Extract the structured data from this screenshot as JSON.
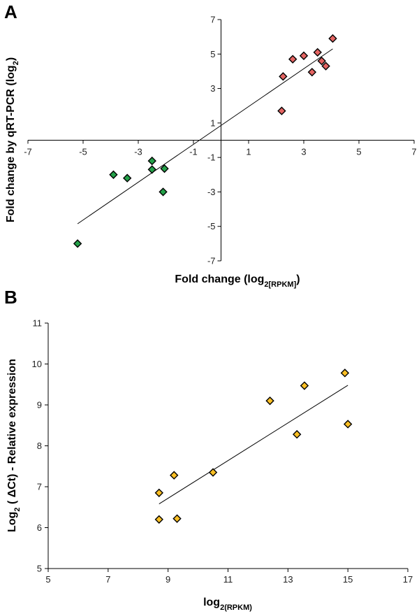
{
  "chart_data": [
    {
      "panel": "A",
      "type": "scatter",
      "xlabel": {
        "main": "Fold change (log",
        "sub": "2[RPKM]",
        "tail": ")"
      },
      "ylabel": {
        "main": "Fold change by qRT-PCR (log",
        "sub": "2",
        "tail": ")"
      },
      "xlim": [
        -7,
        7
      ],
      "ylim": [
        -7,
        7
      ],
      "xticks": [
        "-7",
        "-5",
        "-3",
        "-1",
        "1",
        "3",
        "5",
        "7"
      ],
      "yticks": [
        "7",
        "5",
        "3",
        "1",
        "-1",
        "-3",
        "-5",
        "-7"
      ],
      "grid": false,
      "series": [
        {
          "color": "#e46462",
          "points": [
            [
              2.2,
              1.7
            ],
            [
              2.25,
              3.7
            ],
            [
              2.6,
              4.7
            ],
            [
              3.0,
              4.9
            ],
            [
              3.3,
              3.95
            ],
            [
              3.5,
              5.1
            ],
            [
              3.65,
              4.6
            ],
            [
              3.8,
              4.3
            ],
            [
              4.05,
              5.9
            ]
          ]
        },
        {
          "color": "#24a149",
          "points": [
            [
              -5.2,
              -6.0
            ],
            [
              -3.9,
              -2.0
            ],
            [
              -3.4,
              -2.2
            ],
            [
              -2.5,
              -1.2
            ],
            [
              -2.5,
              -1.7
            ],
            [
              -2.05,
              -1.65
            ],
            [
              -2.1,
              -3.0
            ]
          ]
        }
      ],
      "trendline": [
        [
          -5.2,
          -4.85
        ],
        [
          4.05,
          5.3
        ]
      ]
    },
    {
      "panel": "B",
      "type": "scatter",
      "xlabel": {
        "main": "log",
        "sub": "2(RPKM)",
        "tail": ""
      },
      "ylabel": {
        "main": "Log",
        "sub": "2",
        "tail": " ( ΔCt) - Relative expression"
      },
      "xlim": [
        5,
        17
      ],
      "ylim": [
        5,
        11
      ],
      "xticks": [
        "5",
        "7",
        "9",
        "11",
        "13",
        "15",
        "17"
      ],
      "yticks": [
        "11",
        "10",
        "9",
        "8",
        "7",
        "6",
        "5"
      ],
      "grid": false,
      "series": [
        {
          "color": "#fbbf24",
          "points": [
            [
              8.7,
              6.85
            ],
            [
              8.7,
              6.2
            ],
            [
              9.2,
              7.28
            ],
            [
              9.3,
              6.22
            ],
            [
              10.5,
              7.35
            ],
            [
              12.4,
              9.1
            ],
            [
              13.3,
              8.28
            ],
            [
              13.55,
              9.47
            ],
            [
              14.9,
              9.78
            ],
            [
              15.0,
              8.53
            ]
          ]
        }
      ],
      "trendline": [
        [
          8.7,
          6.58
        ],
        [
          15.0,
          9.48
        ]
      ]
    }
  ]
}
